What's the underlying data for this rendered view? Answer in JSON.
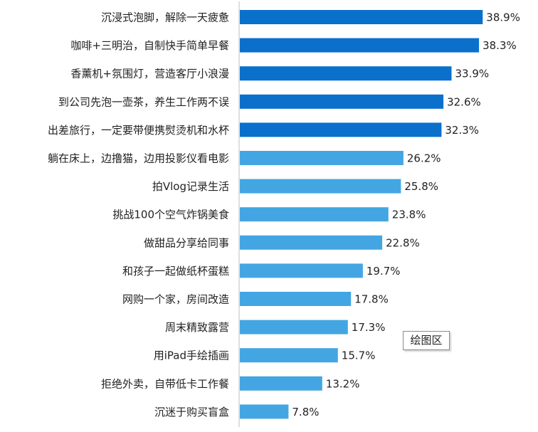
{
  "chart_data": {
    "type": "bar",
    "orientation": "horizontal",
    "categories": [
      "沉浸式泡脚，解除一天疲惫",
      "咖啡+三明治，自制快手简单早餐",
      "香薰机+氛围灯，营造客厅小浪漫",
      "到公司先泡一壶茶，养生工作两不误",
      "出差旅行，一定要带便携熨烫机和水杯",
      "躺在床上，边撸猫，边用投影仪看电影",
      "拍Vlog记录生活",
      "挑战100个空气炸锅美食",
      "做甜品分享给同事",
      "和孩子一起做纸杯蛋糕",
      "网购一个家，房间改造",
      "周末精致露营",
      "用iPad手绘插画",
      "拒绝外卖，自带低卡工作餐",
      "沉迷于购买盲盒"
    ],
    "values": [
      38.9,
      38.3,
      33.9,
      32.6,
      32.3,
      26.2,
      25.8,
      23.8,
      22.8,
      19.7,
      17.8,
      17.3,
      15.7,
      13.2,
      7.8
    ],
    "value_labels": [
      "38.9%",
      "38.3%",
      "33.9%",
      "32.6%",
      "32.3%",
      "26.2%",
      "25.8%",
      "23.8%",
      "22.8%",
      "19.7%",
      "17.8%",
      "17.3%",
      "15.7%",
      "13.2%",
      "7.8%"
    ],
    "unit": "%",
    "xlim": [
      0,
      40
    ],
    "title": "",
    "xlabel": "",
    "ylabel": "",
    "grid": false,
    "legend": false,
    "colors": {
      "top": "#0b6fcc",
      "rest": "#43a6e3"
    },
    "top_count": 5
  },
  "tooltip": {
    "label": "绘图区"
  }
}
